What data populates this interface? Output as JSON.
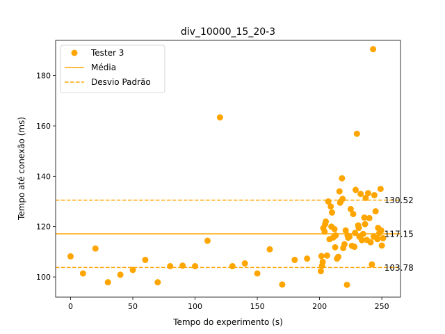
{
  "chart_data": {
    "type": "scatter",
    "title": "div_10000_15_20-3",
    "xlabel": "Tempo do experimento (s)",
    "ylabel": "Tempo até conexão (ms)",
    "xlim": [
      -12,
      265
    ],
    "ylim": [
      92,
      194
    ],
    "xticks": [
      0,
      50,
      100,
      150,
      200,
      250
    ],
    "yticks": [
      100,
      120,
      140,
      160,
      180
    ],
    "grid": false,
    "legend_position": "top-left",
    "color": "#FFA500",
    "legend": {
      "scatter": "Tester 3",
      "mean": "Média",
      "std": "Desvio Padrão"
    },
    "mean": 117.15,
    "std_upper": 130.52,
    "std_lower": 103.78,
    "annotations": {
      "upper": "130.52",
      "mean": "117.15",
      "lower": "103.78"
    },
    "series": [
      {
        "name": "Tester 3",
        "x": [
          0,
          10,
          20,
          30,
          40,
          50,
          60,
          70,
          80,
          90,
          100,
          110,
          120,
          130,
          140,
          150,
          160,
          170,
          180,
          190,
          201,
          201.5,
          202,
          202.5,
          203,
          204,
          205,
          206,
          207,
          208,
          209,
          210,
          211,
          212,
          212.5,
          213,
          214,
          215,
          216,
          217,
          218,
          218.5,
          219,
          220,
          221,
          222,
          223,
          224,
          225,
          226,
          227,
          228,
          229,
          230,
          231,
          232,
          233,
          234,
          235,
          236,
          237,
          238,
          239,
          240,
          241,
          242,
          243,
          244,
          245,
          246,
          247,
          248,
          249,
          250,
          251,
          204.5,
          209.5,
          216.5,
          222.5,
          228.5,
          231.5,
          236.5,
          243.5,
          246.5,
          249.5
        ],
        "y": [
          108.2,
          101.4,
          111.3,
          97.9,
          100.9,
          102.8,
          106.8,
          97.9,
          104.3,
          104.5,
          104.3,
          114.4,
          163.4,
          104.3,
          105.4,
          101.4,
          111.0,
          97.0,
          106.8,
          107.3,
          102.3,
          108.3,
          104.5,
          106.0,
          119.4,
          118.0,
          122.0,
          108.5,
          130.0,
          115.0,
          128.0,
          125.6,
          115.7,
          119.0,
          111.8,
          116.5,
          107.3,
          108.0,
          134.0,
          130.0,
          139.2,
          131.0,
          111.5,
          113.0,
          118.5,
          96.9,
          115.6,
          116.0,
          127.0,
          112.4,
          125.0,
          112.0,
          134.6,
          156.9,
          120.5,
          116.0,
          133.0,
          114.6,
          117.1,
          123.6,
          131.4,
          114.7,
          133.3,
          123.4,
          113.8,
          105.0,
          190.5,
          132.5,
          126.1,
          115.5,
          119.5,
          117.5,
          135.0,
          112.5,
          115.4,
          121.0,
          120.0,
          129.5,
          116.5,
          117.5,
          119.5,
          121.0,
          116.0,
          115.0,
          118.5
        ]
      }
    ]
  }
}
